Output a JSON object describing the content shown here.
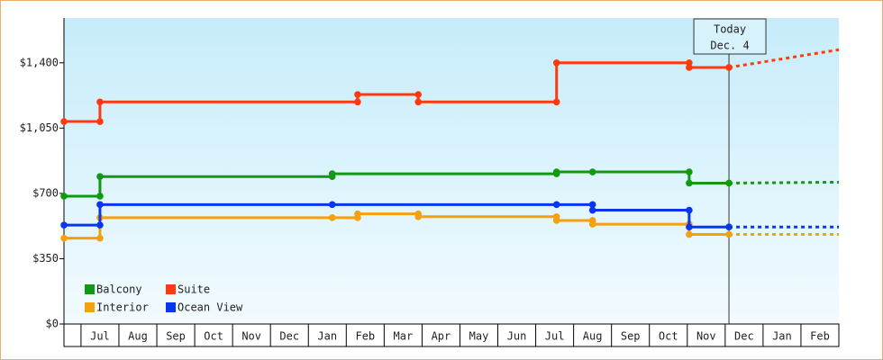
{
  "chart_data": {
    "type": "step-line",
    "xlim": [
      -0.45,
      20
    ],
    "ylim": [
      0,
      1640
    ],
    "yticks": [
      {
        "value": 0,
        "label": "$0"
      },
      {
        "value": 350,
        "label": "$350"
      },
      {
        "value": 700,
        "label": "$700"
      },
      {
        "value": 1050,
        "label": "$1,050"
      },
      {
        "value": 1400,
        "label": "$1,400"
      }
    ],
    "xticks": [
      {
        "value": 0.5,
        "label": "Jul"
      },
      {
        "value": 1.5,
        "label": "Aug"
      },
      {
        "value": 2.5,
        "label": "Sep"
      },
      {
        "value": 3.5,
        "label": "Oct"
      },
      {
        "value": 4.5,
        "label": "Nov"
      },
      {
        "value": 5.5,
        "label": "Dec"
      },
      {
        "value": 6.5,
        "label": "Jan"
      },
      {
        "value": 7.5,
        "label": "Feb"
      },
      {
        "value": 8.5,
        "label": "Mar"
      },
      {
        "value": 9.5,
        "label": "Apr"
      },
      {
        "value": 10.5,
        "label": "May"
      },
      {
        "value": 11.5,
        "label": "Jun"
      },
      {
        "value": 12.5,
        "label": "Jul"
      },
      {
        "value": 13.5,
        "label": "Aug"
      },
      {
        "value": 14.5,
        "label": "Sep"
      },
      {
        "value": 15.5,
        "label": "Oct"
      },
      {
        "value": 16.5,
        "label": "Nov"
      },
      {
        "value": 17.5,
        "label": "Dec"
      },
      {
        "value": 18.5,
        "label": "Jan"
      },
      {
        "value": 19.5,
        "label": "Feb"
      }
    ],
    "legend": "lower-left",
    "annotation": {
      "x": 17.1,
      "lines": [
        "Today",
        "Dec. 4"
      ]
    },
    "series": [
      {
        "name": "Balcony",
        "color": "#129912",
        "x": [
          -0.45,
          0.5,
          0.5,
          6.63,
          6.63,
          12.55,
          12.55,
          13.5,
          16.05,
          16.05,
          17.1
        ],
        "values": [
          685,
          685,
          790,
          790,
          805,
          805,
          815,
          815,
          815,
          755,
          755
        ],
        "projection": {
          "x": [
            17.1,
            20
          ],
          "values": [
            755,
            760
          ]
        }
      },
      {
        "name": "Suite",
        "color": "#ff3a10",
        "x": [
          -0.45,
          0.5,
          0.5,
          7.3,
          7.3,
          8.9,
          8.9,
          12.55,
          12.55,
          16.05,
          16.05,
          17.1
        ],
        "values": [
          1085,
          1085,
          1190,
          1190,
          1230,
          1230,
          1190,
          1190,
          1400,
          1400,
          1375,
          1375
        ],
        "projection": {
          "x": [
            17.1,
            20
          ],
          "values": [
            1375,
            1470
          ]
        }
      },
      {
        "name": "Interior",
        "color": "#f5a00f",
        "x": [
          -0.45,
          0.5,
          0.5,
          6.63,
          7.3,
          7.3,
          8.9,
          8.9,
          12.55,
          12.55,
          13.5,
          13.5,
          16.05,
          16.05,
          17.1
        ],
        "values": [
          460,
          460,
          570,
          570,
          570,
          590,
          590,
          575,
          575,
          555,
          555,
          535,
          535,
          480,
          480
        ],
        "projection": {
          "x": [
            17.1,
            20
          ],
          "values": [
            480,
            480
          ]
        }
      },
      {
        "name": "Ocean View",
        "color": "#0a35ee",
        "x": [
          -0.45,
          0.5,
          0.5,
          6.63,
          12.55,
          13.5,
          13.5,
          16.05,
          16.05,
          17.1
        ],
        "values": [
          530,
          530,
          640,
          640,
          640,
          640,
          610,
          610,
          520,
          520
        ],
        "projection": {
          "x": [
            17.1,
            20
          ],
          "values": [
            520,
            520
          ]
        }
      }
    ]
  }
}
